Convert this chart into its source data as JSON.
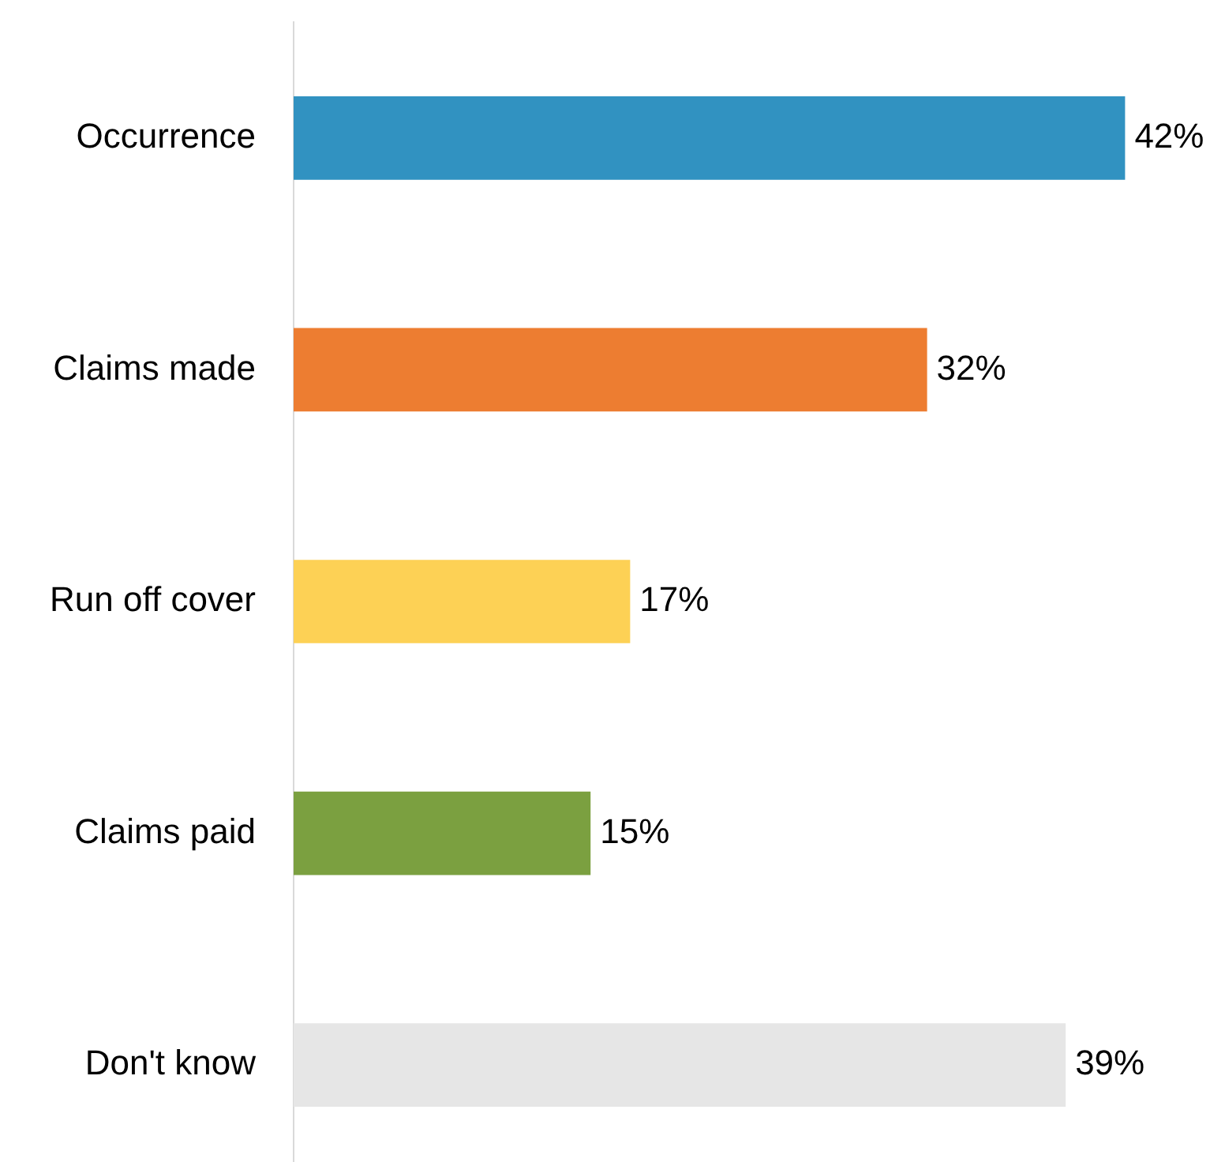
{
  "chart_data": {
    "type": "bar",
    "orientation": "horizontal",
    "categories": [
      "Occurrence",
      "Claims made",
      "Run off cover",
      "Claims paid",
      "Don't know"
    ],
    "values": [
      42,
      32,
      17,
      15,
      39
    ],
    "colors": [
      "#3192c1",
      "#ed7d31",
      "#fdd155",
      "#7ba040",
      "#e6e6e6"
    ],
    "value_labels": [
      "42%",
      "32%",
      "17%",
      "15%",
      "39%"
    ],
    "legend": false
  }
}
